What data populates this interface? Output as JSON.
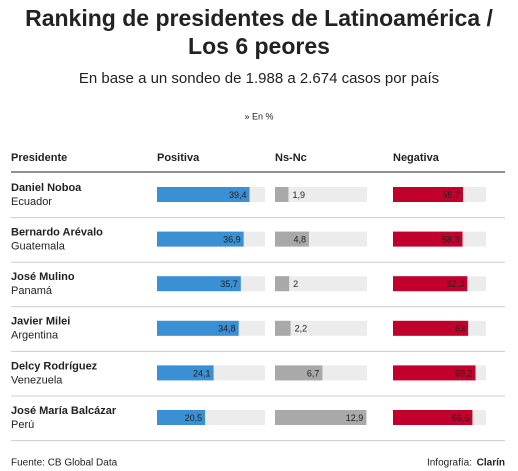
{
  "chart_data": {
    "type": "table-bar",
    "title": [
      "Ranking de presidentes de Latinoamérica /",
      "Los 6 peores"
    ],
    "subtitle": "En base a un sondeo de 1.988 a 2.674 casos por país",
    "unit_note": "» En %",
    "header": "Presidente",
    "categories": [
      "Daniel Noboa",
      "Bernardo Arévalo",
      "José Mulino",
      "Javier Milei",
      "Delcy Rodríguez",
      "José María Balcázar"
    ],
    "countries": [
      "Ecuador",
      "Guatemala",
      "Panamá",
      "Argentina",
      "Venezuela",
      "Perú"
    ],
    "series": [
      {
        "name": "Positiva",
        "color": "#3b8fd3",
        "label_color": "#ffffff",
        "xlim": [
          0,
          46
        ],
        "values": [
          39.4,
          36.9,
          35.7,
          34.8,
          24.1,
          20.5
        ],
        "value_labels": [
          "39,4",
          "36,9",
          "35,7",
          "34,8",
          "24,1",
          "20,5"
        ]
      },
      {
        "name": "Ns-Nc",
        "color": "#a9a9a9",
        "label_color": "#333333",
        "xlim": [
          0,
          13
        ],
        "values": [
          1.9,
          4.8,
          2,
          2.2,
          6.7,
          12.9
        ],
        "value_labels": [
          "1,9",
          "4,8",
          "2",
          "2,2",
          "6,7",
          "12,9"
        ]
      },
      {
        "name": "Negativa",
        "color": "#c1002b",
        "label_color": "#ffffff",
        "xlim": [
          0,
          78
        ],
        "values": [
          58.7,
          58.3,
          62.3,
          63,
          69.2,
          66.6
        ],
        "value_labels": [
          "58,7",
          "58,3",
          "62,3",
          "63",
          "69,2",
          "66,6"
        ]
      }
    ],
    "source": "Fuente: CB Global Data",
    "credit_label": "Infografía:",
    "credit_name": "Clarín"
  }
}
